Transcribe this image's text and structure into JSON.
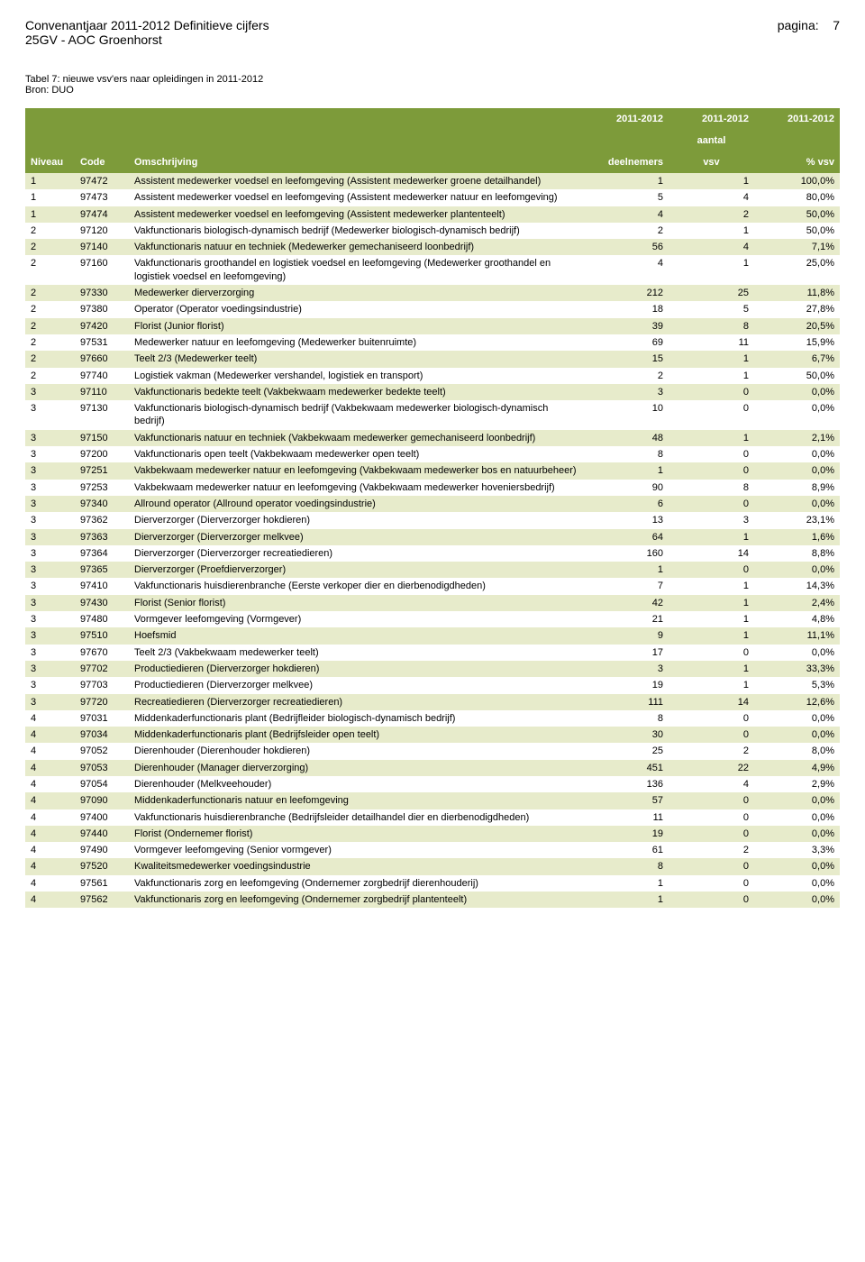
{
  "header": {
    "title_left": "Convenantjaar 2011-2012 Definitieve cijfers",
    "title_sub": "25GV - AOC Groenhorst",
    "page_label": "pagina:",
    "page_number": "7"
  },
  "table_meta": {
    "title": "Tabel 7: nieuwe vsv'ers naar opleidingen in 2011-2012",
    "source": "Bron: DUO"
  },
  "columns": {
    "niveau": "Niveau",
    "code": "Code",
    "omschrijving": "Omschrijving",
    "year1": "2011-2012",
    "year2": "2011-2012",
    "year3": "2011-2012",
    "sub_deelnemers": "deelnemers",
    "sub_aantal": "aantal",
    "sub_vsv": "vsv",
    "sub_pct": "% vsv"
  },
  "colors": {
    "header_bg": "#7d9b3a",
    "header_text": "#ffffff",
    "row_odd": "#e7ebcb",
    "row_even": "#ffffff"
  },
  "rows": [
    {
      "niv": "1",
      "code": "97472",
      "desc": "Assistent medewerker voedsel en leefomgeving (Assistent medewerker groene detailhandel)",
      "d": "1",
      "v": "1",
      "p": "100,0%"
    },
    {
      "niv": "1",
      "code": "97473",
      "desc": "Assistent medewerker voedsel en leefomgeving (Assistent medewerker natuur en leefomgeving)",
      "d": "5",
      "v": "4",
      "p": "80,0%"
    },
    {
      "niv": "1",
      "code": "97474",
      "desc": "Assistent medewerker voedsel en leefomgeving (Assistent medewerker plantenteelt)",
      "d": "4",
      "v": "2",
      "p": "50,0%"
    },
    {
      "niv": "2",
      "code": "97120",
      "desc": "Vakfunctionaris biologisch-dynamisch bedrijf (Medewerker biologisch-dynamisch bedrijf)",
      "d": "2",
      "v": "1",
      "p": "50,0%"
    },
    {
      "niv": "2",
      "code": "97140",
      "desc": "Vakfunctionaris natuur en techniek (Medewerker gemechaniseerd loonbedrijf)",
      "d": "56",
      "v": "4",
      "p": "7,1%"
    },
    {
      "niv": "2",
      "code": "97160",
      "desc": "Vakfunctionaris groothandel en logistiek voedsel en leefomgeving (Medewerker groothandel en logistiek voedsel en leefomgeving)",
      "d": "4",
      "v": "1",
      "p": "25,0%"
    },
    {
      "niv": "2",
      "code": "97330",
      "desc": "Medewerker dierverzorging",
      "d": "212",
      "v": "25",
      "p": "11,8%"
    },
    {
      "niv": "2",
      "code": "97380",
      "desc": "Operator (Operator voedingsindustrie)",
      "d": "18",
      "v": "5",
      "p": "27,8%"
    },
    {
      "niv": "2",
      "code": "97420",
      "desc": "Florist (Junior florist)",
      "d": "39",
      "v": "8",
      "p": "20,5%"
    },
    {
      "niv": "2",
      "code": "97531",
      "desc": "Medewerker natuur en leefomgeving (Medewerker buitenruimte)",
      "d": "69",
      "v": "11",
      "p": "15,9%"
    },
    {
      "niv": "2",
      "code": "97660",
      "desc": "Teelt 2/3 (Medewerker teelt)",
      "d": "15",
      "v": "1",
      "p": "6,7%"
    },
    {
      "niv": "2",
      "code": "97740",
      "desc": "Logistiek vakman (Medewerker vershandel, logistiek en transport)",
      "d": "2",
      "v": "1",
      "p": "50,0%"
    },
    {
      "niv": "3",
      "code": "97110",
      "desc": "Vakfunctionaris bedekte teelt (Vakbekwaam medewerker bedekte teelt)",
      "d": "3",
      "v": "0",
      "p": "0,0%"
    },
    {
      "niv": "3",
      "code": "97130",
      "desc": "Vakfunctionaris biologisch-dynamisch bedrijf (Vakbekwaam medewerker biologisch-dynamisch bedrijf)",
      "d": "10",
      "v": "0",
      "p": "0,0%"
    },
    {
      "niv": "3",
      "code": "97150",
      "desc": "Vakfunctionaris natuur en techniek (Vakbekwaam medewerker gemechaniseerd loonbedrijf)",
      "d": "48",
      "v": "1",
      "p": "2,1%"
    },
    {
      "niv": "3",
      "code": "97200",
      "desc": "Vakfunctionaris open teelt (Vakbekwaam medewerker open teelt)",
      "d": "8",
      "v": "0",
      "p": "0,0%"
    },
    {
      "niv": "3",
      "code": "97251",
      "desc": "Vakbekwaam medewerker natuur en leefomgeving (Vakbekwaam medewerker bos en natuurbeheer)",
      "d": "1",
      "v": "0",
      "p": "0,0%"
    },
    {
      "niv": "3",
      "code": "97253",
      "desc": "Vakbekwaam medewerker natuur en leefomgeving (Vakbekwaam medewerker hoveniersbedrijf)",
      "d": "90",
      "v": "8",
      "p": "8,9%"
    },
    {
      "niv": "3",
      "code": "97340",
      "desc": "Allround operator (Allround operator voedingsindustrie)",
      "d": "6",
      "v": "0",
      "p": "0,0%"
    },
    {
      "niv": "3",
      "code": "97362",
      "desc": "Dierverzorger (Dierverzorger hokdieren)",
      "d": "13",
      "v": "3",
      "p": "23,1%"
    },
    {
      "niv": "3",
      "code": "97363",
      "desc": "Dierverzorger (Dierverzorger melkvee)",
      "d": "64",
      "v": "1",
      "p": "1,6%"
    },
    {
      "niv": "3",
      "code": "97364",
      "desc": "Dierverzorger (Dierverzorger recreatiedieren)",
      "d": "160",
      "v": "14",
      "p": "8,8%"
    },
    {
      "niv": "3",
      "code": "97365",
      "desc": "Dierverzorger (Proefdierverzorger)",
      "d": "1",
      "v": "0",
      "p": "0,0%"
    },
    {
      "niv": "3",
      "code": "97410",
      "desc": "Vakfunctionaris huisdierenbranche (Eerste verkoper dier en dierbenodigdheden)",
      "d": "7",
      "v": "1",
      "p": "14,3%"
    },
    {
      "niv": "3",
      "code": "97430",
      "desc": "Florist (Senior florist)",
      "d": "42",
      "v": "1",
      "p": "2,4%"
    },
    {
      "niv": "3",
      "code": "97480",
      "desc": "Vormgever leefomgeving (Vormgever)",
      "d": "21",
      "v": "1",
      "p": "4,8%"
    },
    {
      "niv": "3",
      "code": "97510",
      "desc": "Hoefsmid",
      "d": "9",
      "v": "1",
      "p": "11,1%"
    },
    {
      "niv": "3",
      "code": "97670",
      "desc": "Teelt 2/3 (Vakbekwaam medewerker teelt)",
      "d": "17",
      "v": "0",
      "p": "0,0%"
    },
    {
      "niv": "3",
      "code": "97702",
      "desc": "Productiedieren (Dierverzorger hokdieren)",
      "d": "3",
      "v": "1",
      "p": "33,3%"
    },
    {
      "niv": "3",
      "code": "97703",
      "desc": "Productiedieren (Dierverzorger melkvee)",
      "d": "19",
      "v": "1",
      "p": "5,3%"
    },
    {
      "niv": "3",
      "code": "97720",
      "desc": "Recreatiedieren (Dierverzorger recreatiedieren)",
      "d": "111",
      "v": "14",
      "p": "12,6%"
    },
    {
      "niv": "4",
      "code": "97031",
      "desc": "Middenkaderfunctionaris plant (Bedrijfleider biologisch-dynamisch bedrijf)",
      "d": "8",
      "v": "0",
      "p": "0,0%"
    },
    {
      "niv": "4",
      "code": "97034",
      "desc": "Middenkaderfunctionaris plant (Bedrijfsleider open teelt)",
      "d": "30",
      "v": "0",
      "p": "0,0%"
    },
    {
      "niv": "4",
      "code": "97052",
      "desc": "Dierenhouder (Dierenhouder hokdieren)",
      "d": "25",
      "v": "2",
      "p": "8,0%"
    },
    {
      "niv": "4",
      "code": "97053",
      "desc": "Dierenhouder (Manager dierverzorging)",
      "d": "451",
      "v": "22",
      "p": "4,9%"
    },
    {
      "niv": "4",
      "code": "97054",
      "desc": "Dierenhouder (Melkveehouder)",
      "d": "136",
      "v": "4",
      "p": "2,9%"
    },
    {
      "niv": "4",
      "code": "97090",
      "desc": "Middenkaderfunctionaris natuur en leefomgeving",
      "d": "57",
      "v": "0",
      "p": "0,0%"
    },
    {
      "niv": "4",
      "code": "97400",
      "desc": "Vakfunctionaris huisdierenbranche (Bedrijfsleider detailhandel dier en dierbenodigdheden)",
      "d": "11",
      "v": "0",
      "p": "0,0%"
    },
    {
      "niv": "4",
      "code": "97440",
      "desc": "Florist (Ondernemer florist)",
      "d": "19",
      "v": "0",
      "p": "0,0%"
    },
    {
      "niv": "4",
      "code": "97490",
      "desc": "Vormgever leefomgeving (Senior vormgever)",
      "d": "61",
      "v": "2",
      "p": "3,3%"
    },
    {
      "niv": "4",
      "code": "97520",
      "desc": "Kwaliteitsmedewerker voedingsindustrie",
      "d": "8",
      "v": "0",
      "p": "0,0%"
    },
    {
      "niv": "4",
      "code": "97561",
      "desc": "Vakfunctionaris zorg en leefomgeving (Ondernemer zorgbedrijf dierenhouderij)",
      "d": "1",
      "v": "0",
      "p": "0,0%"
    },
    {
      "niv": "4",
      "code": "97562",
      "desc": "Vakfunctionaris zorg en leefomgeving (Ondernemer zorgbedrijf plantenteelt)",
      "d": "1",
      "v": "0",
      "p": "0,0%"
    }
  ]
}
